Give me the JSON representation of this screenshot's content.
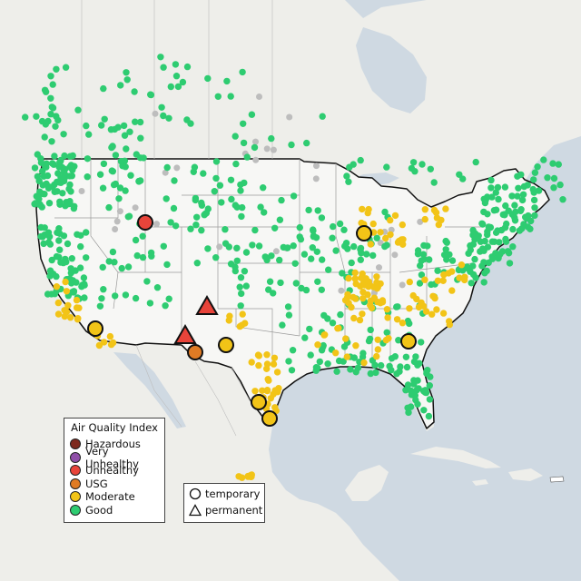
{
  "legend": {
    "title": "Air Quality Index",
    "categories": [
      {
        "label": "Hazardous",
        "color": "#7e2a1e"
      },
      {
        "label": "Very Unhealthy",
        "color": "#8f4fa8"
      },
      {
        "label": "Unhealthy",
        "color": "#e8443a"
      },
      {
        "label": "USG",
        "color": "#e07b24"
      },
      {
        "label": "Moderate",
        "color": "#f2c417"
      },
      {
        "label": "Good",
        "color": "#2ecc71"
      }
    ],
    "shapes": [
      {
        "label": "temporary",
        "icon": "circle-icon"
      },
      {
        "label": "permanent",
        "icon": "triangle-icon"
      }
    ]
  },
  "colors": {
    "water": "#cfd9e2",
    "land": "#f2f2ef",
    "us_land": "#f7f7f5",
    "inactive_monitor": "#bdbdbd"
  },
  "highlighted_monitors": [
    {
      "category": "Unhealthy",
      "shape": "circle"
    },
    {
      "category": "Unhealthy",
      "shape": "triangle"
    },
    {
      "category": "Unhealthy",
      "shape": "triangle"
    },
    {
      "category": "USG",
      "shape": "circle"
    },
    {
      "category": "Moderate",
      "shape": "circle"
    },
    {
      "category": "Moderate",
      "shape": "circle"
    },
    {
      "category": "Moderate",
      "shape": "circle"
    },
    {
      "category": "Moderate",
      "shape": "circle"
    },
    {
      "category": "Moderate",
      "shape": "circle"
    },
    {
      "category": "Moderate",
      "shape": "circle"
    }
  ]
}
